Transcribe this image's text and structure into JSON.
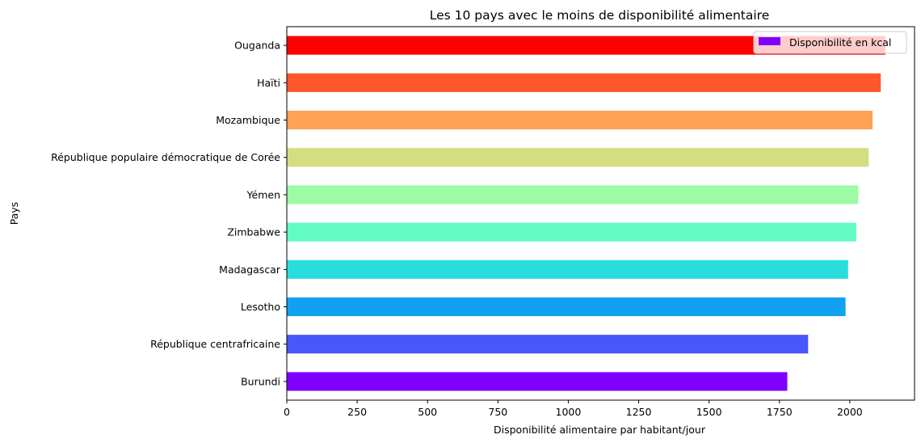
{
  "chart_data": {
    "type": "bar",
    "orientation": "horizontal",
    "title": "Les 10 pays avec le moins de disponibilité alimentaire",
    "xlabel": "Disponibilité alimentaire par habitant/jour",
    "ylabel": "Pays",
    "xlim": [
      0,
      2230
    ],
    "xticks": [
      0,
      250,
      500,
      750,
      1000,
      1250,
      1500,
      1750,
      2000
    ],
    "grid": false,
    "legend": {
      "position": "top-right"
    },
    "categories": [
      "Burundi",
      "République centrafricaine",
      "Lesotho",
      "Madagascar",
      "Zimbabwe",
      "Yémen",
      "République populaire démocratique de Corée",
      "Mozambique",
      "Haïti",
      "Ouganda"
    ],
    "series": [
      {
        "name": "Disponibilité en kcal",
        "values": [
          1778,
          1852,
          1985,
          1994,
          2023,
          2030,
          2067,
          2081,
          2110,
          2126
        ],
        "colors": [
          "#8000ff",
          "#4856fb",
          "#10a2f0",
          "#2adddd",
          "#62fbc4",
          "#9cfba4",
          "#d4dd80",
          "#ffa256",
          "#ff562c",
          "#ff0000"
        ]
      }
    ]
  }
}
